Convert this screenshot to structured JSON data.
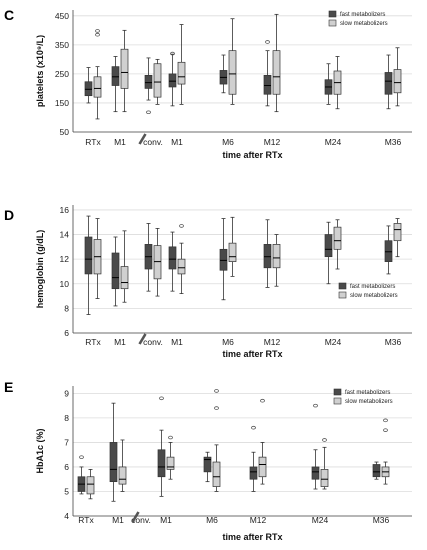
{
  "figure": {
    "panel_letter_note": "Three stacked box-plot panels labelled C, D, E"
  },
  "chart_data": [
    {
      "type": "box",
      "panel": "C",
      "ylabel": "platelets (x10⁹/L)",
      "xlabel": "time after RTx",
      "ylim": [
        50,
        470
      ],
      "yticks": [
        50,
        150,
        250,
        350,
        450
      ],
      "grid": true,
      "legend_placement": "top-right",
      "break_after_category": "M1",
      "categories": [
        "RTx",
        "M1",
        "conv.",
        "M1",
        "M6",
        "M12",
        "M24",
        "M36"
      ],
      "series": [
        {
          "name": "fast metabolizers",
          "color": "#4a4a4a",
          "boxes": [
            {
              "low": 150,
              "q1": 175,
              "median": 197,
              "q3": 223,
              "high": 272,
              "outliers": []
            },
            {
              "low": 120,
              "q1": 210,
              "median": 240,
              "q3": 275,
              "high": 310,
              "outliers": []
            },
            {
              "low": 160,
              "q1": 200,
              "median": 220,
              "q3": 245,
              "high": 305,
              "outliers": [
                118
              ]
            },
            {
              "low": 140,
              "q1": 205,
              "median": 225,
              "q3": 250,
              "high": 318,
              "outliers": [
                320
              ]
            },
            {
              "low": 185,
              "q1": 215,
              "median": 238,
              "q3": 262,
              "high": 315,
              "outliers": []
            },
            {
              "low": 140,
              "q1": 180,
              "median": 210,
              "q3": 245,
              "high": 330,
              "outliers": [
                360
              ]
            },
            {
              "low": 145,
              "q1": 180,
              "median": 205,
              "q3": 230,
              "high": 285,
              "outliers": []
            },
            {
              "low": 130,
              "q1": 180,
              "median": 225,
              "q3": 255,
              "high": 315,
              "outliers": []
            }
          ]
        },
        {
          "name": "slow metabolizers",
          "color": "#d0d0d0",
          "boxes": [
            {
              "low": 95,
              "q1": 170,
              "median": 200,
              "q3": 240,
              "high": 275,
              "outliers": [
                385,
                398
              ]
            },
            {
              "low": 120,
              "q1": 200,
              "median": 255,
              "q3": 335,
              "high": 400,
              "outliers": []
            },
            {
              "low": 145,
              "q1": 170,
              "median": 222,
              "q3": 285,
              "high": 300,
              "outliers": []
            },
            {
              "low": 145,
              "q1": 215,
              "median": 240,
              "q3": 290,
              "high": 420,
              "outliers": []
            },
            {
              "low": 145,
              "q1": 180,
              "median": 250,
              "q3": 330,
              "high": 440,
              "outliers": []
            },
            {
              "low": 120,
              "q1": 180,
              "median": 240,
              "q3": 330,
              "high": 455,
              "outliers": []
            },
            {
              "low": 130,
              "q1": 180,
              "median": 220,
              "q3": 260,
              "high": 310,
              "outliers": []
            },
            {
              "low": 140,
              "q1": 185,
              "median": 220,
              "q3": 265,
              "high": 340,
              "outliers": []
            }
          ]
        }
      ]
    },
    {
      "type": "box",
      "panel": "D",
      "ylabel": "hemoglobin (g/dL)",
      "xlabel": "time after RTx",
      "ylim": [
        6,
        16.4
      ],
      "yticks": [
        6,
        8,
        10,
        12,
        14,
        16
      ],
      "grid": true,
      "legend_placement": "bottom-right",
      "break_after_category": "M1",
      "categories": [
        "RTx",
        "M1",
        "conv.",
        "M1",
        "M6",
        "M12",
        "M24",
        "M36"
      ],
      "series": [
        {
          "name": "fast metabolizers",
          "color": "#4a4a4a",
          "boxes": [
            {
              "low": 7.5,
              "q1": 10.8,
              "median": 12.0,
              "q3": 13.8,
              "high": 15.5,
              "outliers": []
            },
            {
              "low": 8.2,
              "q1": 9.6,
              "median": 10.5,
              "q3": 12.5,
              "high": 13.8,
              "outliers": []
            },
            {
              "low": 9.4,
              "q1": 11.2,
              "median": 12.2,
              "q3": 13.2,
              "high": 14.9,
              "outliers": []
            },
            {
              "low": 9.4,
              "q1": 11.2,
              "median": 12.0,
              "q3": 13.0,
              "high": 14.2,
              "outliers": []
            },
            {
              "low": 8.7,
              "q1": 11.1,
              "median": 11.9,
              "q3": 12.8,
              "high": 15.3,
              "outliers": []
            },
            {
              "low": 9.7,
              "q1": 11.3,
              "median": 12.2,
              "q3": 13.2,
              "high": 15.2,
              "outliers": []
            },
            {
              "low": 10.0,
              "q1": 12.2,
              "median": 12.8,
              "q3": 14.0,
              "high": 15.0,
              "outliers": []
            },
            {
              "low": 10.8,
              "q1": 11.8,
              "median": 12.6,
              "q3": 13.5,
              "high": 14.7,
              "outliers": []
            }
          ]
        },
        {
          "name": "slow metabolizers",
          "color": "#d0d0d0",
          "boxes": [
            {
              "low": 8.8,
              "q1": 10.8,
              "median": 12.2,
              "q3": 13.6,
              "high": 15.3,
              "outliers": []
            },
            {
              "low": 8.5,
              "q1": 9.6,
              "median": 10.1,
              "q3": 11.4,
              "high": 14.3,
              "outliers": []
            },
            {
              "low": 9.0,
              "q1": 10.4,
              "median": 11.8,
              "q3": 13.1,
              "high": 14.5,
              "outliers": []
            },
            {
              "low": 9.2,
              "q1": 10.8,
              "median": 11.3,
              "q3": 12.0,
              "high": 13.3,
              "outliers": [
                14.7
              ]
            },
            {
              "low": 10.6,
              "q1": 11.8,
              "median": 12.2,
              "q3": 13.3,
              "high": 15.4,
              "outliers": []
            },
            {
              "low": 9.8,
              "q1": 11.3,
              "median": 12.1,
              "q3": 13.2,
              "high": 14.0,
              "outliers": []
            },
            {
              "low": 11.2,
              "q1": 12.8,
              "median": 13.5,
              "q3": 14.6,
              "high": 15.2,
              "outliers": []
            },
            {
              "low": 12.2,
              "q1": 13.5,
              "median": 14.4,
              "q3": 14.9,
              "high": 15.3,
              "outliers": []
            }
          ]
        }
      ]
    },
    {
      "type": "box",
      "panel": "E",
      "ylabel": "HbA1c (%)",
      "xlabel": "time after RTx",
      "ylim": [
        4,
        9.3
      ],
      "yticks": [
        4,
        5,
        6,
        7,
        8,
        9
      ],
      "grid": true,
      "legend_placement": "top-right",
      "break_after_category": "M1",
      "categories": [
        "RTx",
        "M1",
        "conv.",
        "M1",
        "M6",
        "M12",
        "M24",
        "M36"
      ],
      "series": [
        {
          "name": "fast metabolizers",
          "color": "#4a4a4a",
          "boxes": [
            {
              "low": 4.9,
              "q1": 5.0,
              "median": 5.3,
              "q3": 5.6,
              "high": 6.0,
              "outliers": [
                6.4
              ]
            },
            {
              "low": 4.6,
              "q1": 5.4,
              "median": 5.9,
              "q3": 7.0,
              "high": 8.6,
              "outliers": []
            },
            null,
            {
              "low": 4.8,
              "q1": 5.6,
              "median": 6.0,
              "q3": 6.7,
              "high": 7.5,
              "outliers": [
                8.8
              ]
            },
            {
              "low": 5.4,
              "q1": 5.8,
              "median": 6.3,
              "q3": 6.4,
              "high": 6.6,
              "outliers": []
            },
            {
              "low": 5.0,
              "q1": 5.5,
              "median": 5.8,
              "q3": 6.0,
              "high": 6.6,
              "outliers": [
                7.6
              ]
            },
            {
              "low": 5.1,
              "q1": 5.5,
              "median": 5.8,
              "q3": 6.0,
              "high": 6.7,
              "outliers": [
                8.5
              ]
            },
            {
              "low": 5.5,
              "q1": 5.6,
              "median": 5.8,
              "q3": 6.1,
              "high": 6.2,
              "outliers": []
            }
          ]
        },
        {
          "name": "slow metabolizers",
          "color": "#d0d0d0",
          "boxes": [
            {
              "low": 4.7,
              "q1": 4.9,
              "median": 5.3,
              "q3": 5.6,
              "high": 5.9,
              "outliers": []
            },
            {
              "low": 5.0,
              "q1": 5.3,
              "median": 5.5,
              "q3": 6.0,
              "high": 7.1,
              "outliers": []
            },
            null,
            {
              "low": 5.5,
              "q1": 5.9,
              "median": 6.0,
              "q3": 6.4,
              "high": 7.0,
              "outliers": [
                7.2
              ]
            },
            {
              "low": 5.0,
              "q1": 5.2,
              "median": 5.6,
              "q3": 6.2,
              "high": 6.9,
              "outliers": [
                8.4,
                9.1
              ]
            },
            {
              "low": 5.3,
              "q1": 5.6,
              "median": 6.1,
              "q3": 6.4,
              "high": 7.0,
              "outliers": [
                8.7
              ]
            },
            {
              "low": 5.1,
              "q1": 5.2,
              "median": 5.5,
              "q3": 5.9,
              "high": 6.8,
              "outliers": [
                7.1
              ]
            },
            {
              "low": 5.3,
              "q1": 5.6,
              "median": 5.8,
              "q3": 6.0,
              "high": 6.2,
              "outliers": [
                7.5,
                7.9
              ]
            }
          ]
        }
      ]
    }
  ]
}
